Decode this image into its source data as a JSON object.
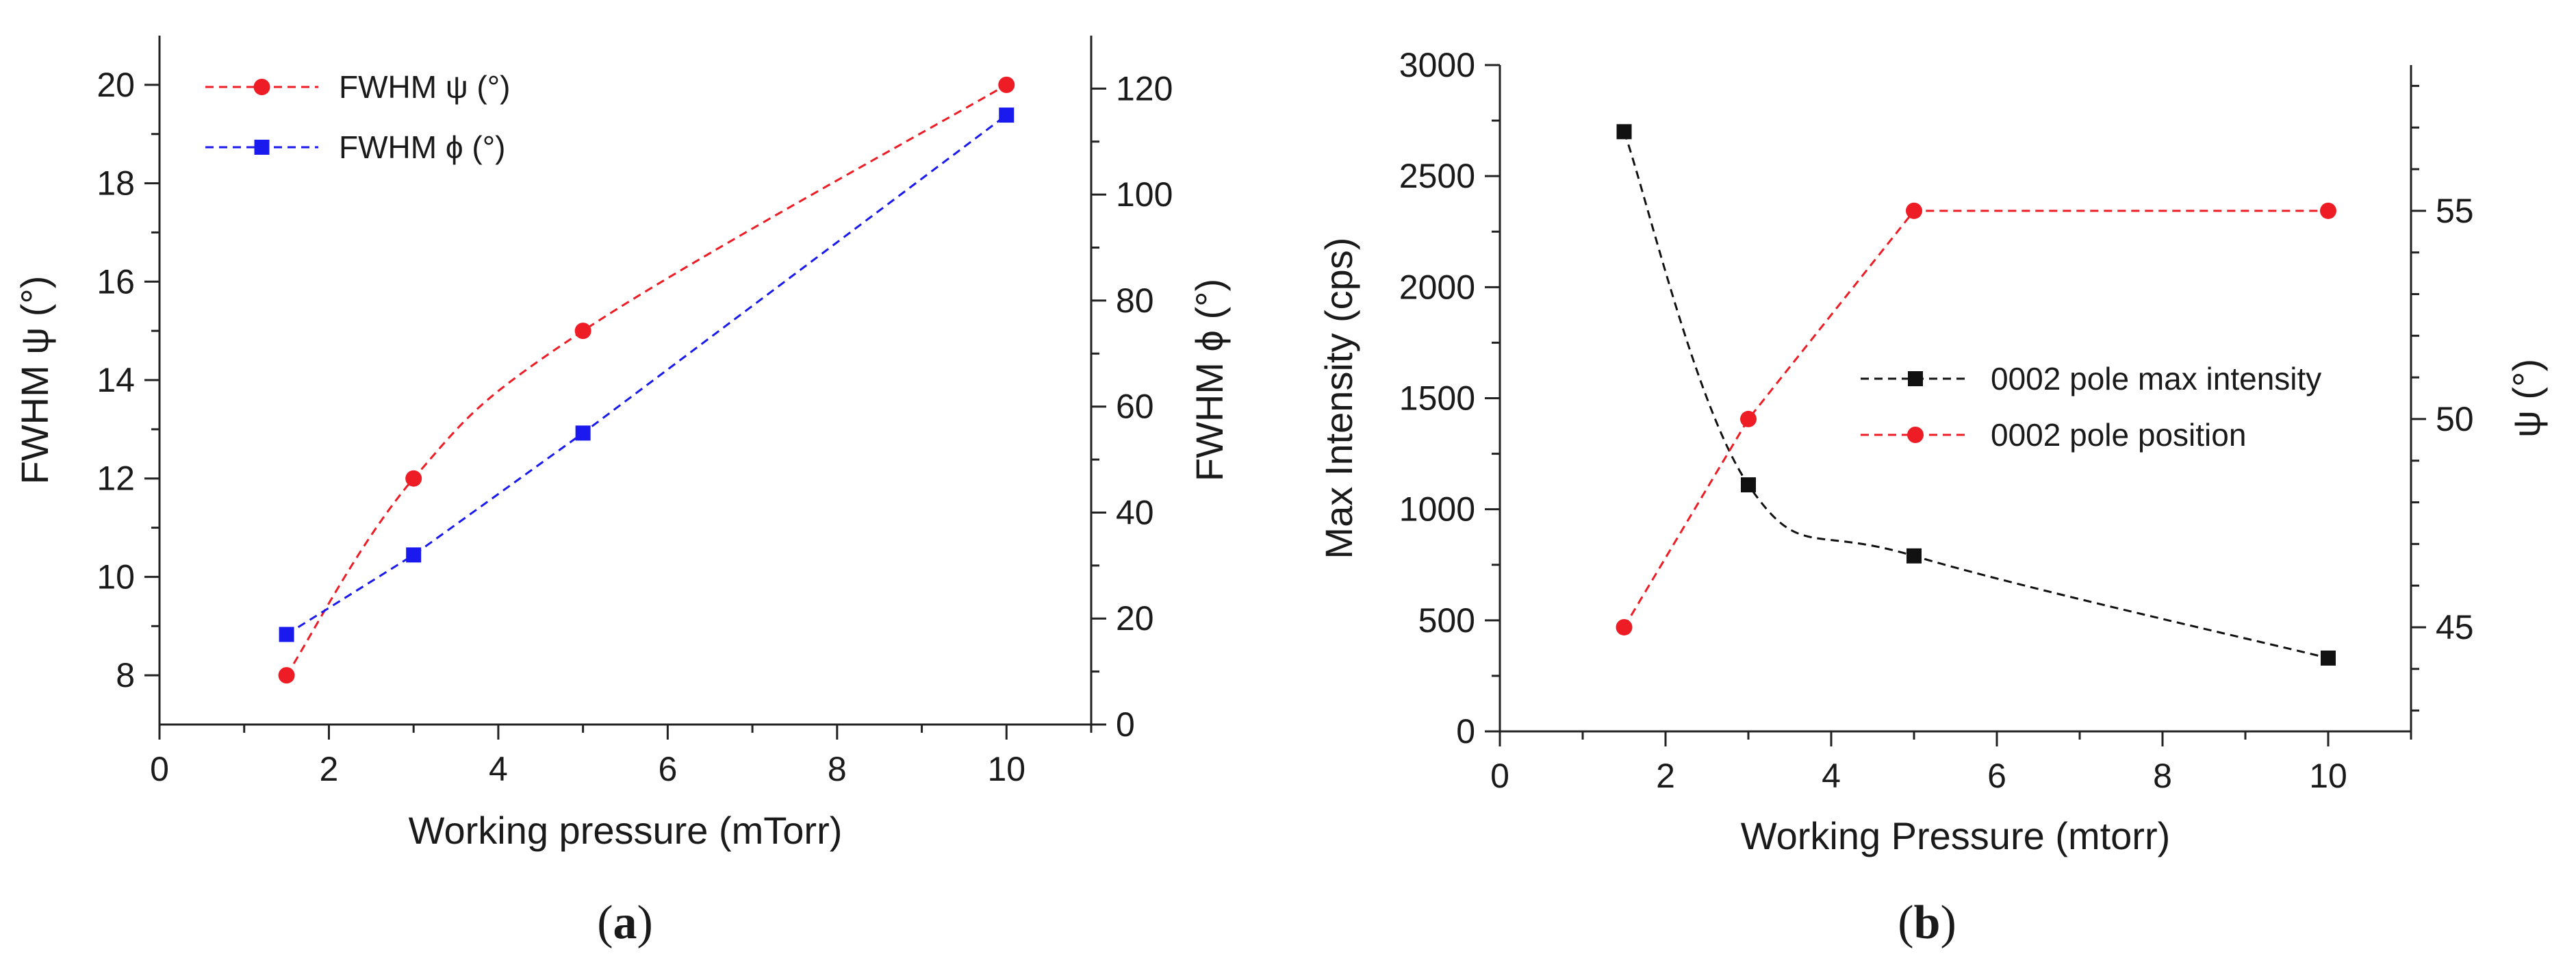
{
  "chart_data": [
    {
      "type": "line",
      "panel_label_open": "(",
      "panel_label_letter": "a",
      "panel_label_close": ")",
      "xlabel": "Working pressure (mTorr)",
      "ylabel": "FWHM ψ (°)",
      "y2label": "FWHM ϕ (°)",
      "xlim": [
        0,
        11
      ],
      "ylim": [
        7,
        21
      ],
      "y2lim": [
        0,
        130
      ],
      "xticks": [
        0,
        2,
        4,
        6,
        8,
        10
      ],
      "yticks": [
        8,
        10,
        12,
        14,
        16,
        18,
        20
      ],
      "y2ticks": [
        0,
        20,
        40,
        60,
        80,
        100,
        120
      ],
      "legend_position": "top-left",
      "series": [
        {
          "name": "FWHM ψ (°)",
          "axis": "left",
          "color": "#ee1c25",
          "marker": "circle",
          "x": [
            1.5,
            3,
            5,
            10
          ],
          "values": [
            8,
            12,
            15,
            20
          ],
          "smooth": true
        },
        {
          "name": "FWHM ϕ (°)",
          "axis": "right",
          "color": "#1a1aee",
          "marker": "square",
          "x": [
            1.5,
            3,
            5,
            10
          ],
          "values": [
            17,
            32,
            55,
            115
          ],
          "smooth": false
        }
      ]
    },
    {
      "type": "line",
      "panel_label_open": "(",
      "panel_label_letter": "b",
      "panel_label_close": ")",
      "xlabel": "Working Pressure (mtorr)",
      "ylabel": "Max Intensity (cps)",
      "y2label": "ψ (°)",
      "xlim": [
        0,
        11
      ],
      "ylim": [
        0,
        3000
      ],
      "y2lim": [
        42.5,
        58.5
      ],
      "xticks": [
        0,
        2,
        4,
        6,
        8,
        10
      ],
      "yticks": [
        0,
        500,
        1000,
        1500,
        2000,
        2500,
        3000
      ],
      "y2ticks": [
        45,
        50,
        55
      ],
      "legend_position": "center-right",
      "series": [
        {
          "name": "0002 pole max intensity",
          "axis": "left",
          "color": "#111111",
          "marker": "square",
          "x": [
            1.5,
            3,
            5,
            10
          ],
          "values": [
            2700,
            1110,
            790,
            330
          ],
          "smooth": true
        },
        {
          "name": "0002 pole position",
          "axis": "right",
          "color": "#ee1c25",
          "marker": "circle",
          "x": [
            1.5,
            3,
            5,
            10
          ],
          "values": [
            45,
            50,
            55,
            55
          ],
          "smooth": false
        }
      ]
    }
  ]
}
